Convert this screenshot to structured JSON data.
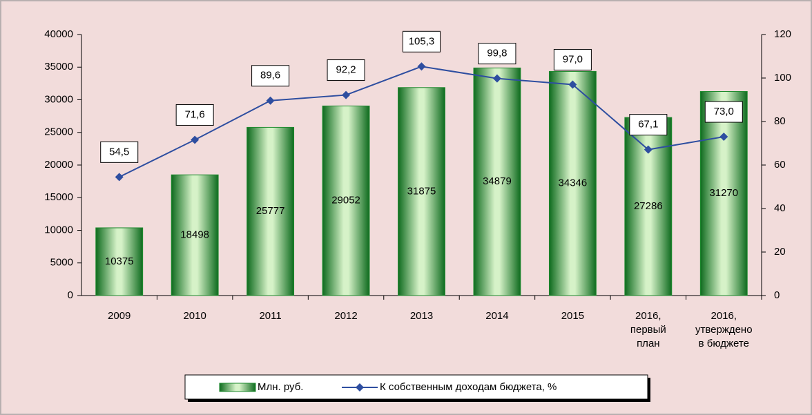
{
  "chart_data": {
    "type": "bar_line",
    "categories": [
      "2009",
      "2010",
      "2011",
      "2012",
      "2013",
      "2014",
      "2015",
      "2016,\nпервый\nплан",
      "2016,\nутверждено\nв бюджете"
    ],
    "series": [
      {
        "name": "Млн. руб.",
        "type": "bar",
        "color": "#1e8a2e",
        "values": [
          10375,
          18498,
          25777,
          29052,
          31875,
          34879,
          34346,
          27286,
          31270
        ]
      },
      {
        "name": "К собственным доходам бюджета, %",
        "type": "line",
        "axis": "y2",
        "color": "#2e4ea0",
        "values": [
          54.5,
          71.6,
          89.6,
          92.2,
          105.3,
          99.8,
          97.0,
          67.1,
          73.0
        ],
        "value_labels": [
          "54,5",
          "71,6",
          "89,6",
          "92,2",
          "105,3",
          "99,8",
          "97,0",
          "67,1",
          "73,0"
        ]
      }
    ],
    "ylim": [
      0,
      40000
    ],
    "yticks": [
      0,
      5000,
      10000,
      15000,
      20000,
      25000,
      30000,
      35000,
      40000
    ],
    "y2lim": [
      0,
      120
    ],
    "y2ticks": [
      0,
      20,
      40,
      60,
      80,
      100,
      120
    ],
    "legend": "bottom"
  }
}
